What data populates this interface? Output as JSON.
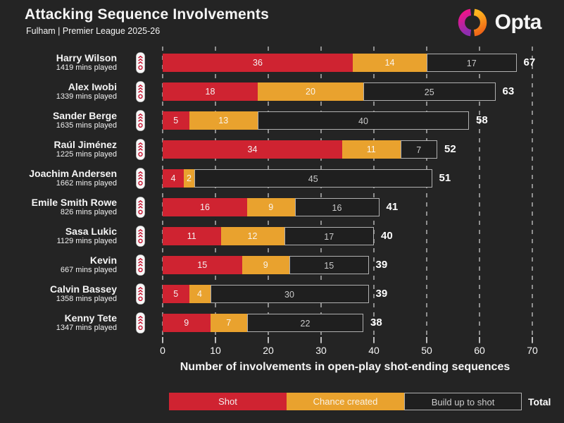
{
  "header": {
    "title": "Attacking Sequence Involvements",
    "subtitle": "Fulham | Premier League 2025-26",
    "brand": "Opta"
  },
  "theme": {
    "background": "#242424",
    "shot_red": "#cf2331",
    "chance_orange": "#e9a22e",
    "buildup_fill": "#1f1f1f",
    "buildup_border": "#b0b0b0",
    "grid_color": "#8f8f8f",
    "badge_red": "#c8102e",
    "opta_magenta_top": "#f0148a",
    "opta_purple_bottom": "#8e2daf",
    "opta_orange_bottom": "#ef6317",
    "opta_amber_top": "#ffb41e"
  },
  "chart_data": {
    "type": "bar",
    "orientation": "horizontal",
    "stacked": true,
    "title": "Attacking Sequence Involvements",
    "subtitle": "Fulham | Premier League 2025-26",
    "xlabel": "Number of involvements in open-play shot-ending sequences",
    "ylabel": "",
    "xlim": [
      0,
      70
    ],
    "x_ticks": [
      0,
      10,
      20,
      30,
      40,
      50,
      60,
      70
    ],
    "grid": "dashed-vertical",
    "legend_position": "bottom",
    "series_names": [
      "Shot",
      "Chance created",
      "Build up to shot"
    ],
    "rows": [
      {
        "player": "Harry Wilson",
        "mins_played": "1419 mins played",
        "shot": 36,
        "chance_created": 14,
        "build_up_to_shot": 17,
        "total": 67
      },
      {
        "player": "Alex Iwobi",
        "mins_played": "1339 mins played",
        "shot": 18,
        "chance_created": 20,
        "build_up_to_shot": 25,
        "total": 63
      },
      {
        "player": "Sander Berge",
        "mins_played": "1635 mins played",
        "shot": 5,
        "chance_created": 13,
        "build_up_to_shot": 40,
        "total": 58
      },
      {
        "player": "Raúl Jiménez",
        "mins_played": "1225 mins played",
        "shot": 34,
        "chance_created": 11,
        "build_up_to_shot": 7,
        "total": 52
      },
      {
        "player": "Joachim Andersen",
        "mins_played": "1662 mins played",
        "shot": 4,
        "chance_created": 2,
        "build_up_to_shot": 45,
        "total": 51
      },
      {
        "player": "Emile Smith Rowe",
        "mins_played": "826 mins played",
        "shot": 16,
        "chance_created": 9,
        "build_up_to_shot": 16,
        "total": 41
      },
      {
        "player": "Sasa Lukic",
        "mins_played": "1129 mins played",
        "shot": 11,
        "chance_created": 12,
        "build_up_to_shot": 17,
        "total": 40
      },
      {
        "player": "Kevin",
        "mins_played": "667 mins played",
        "shot": 15,
        "chance_created": 9,
        "build_up_to_shot": 15,
        "total": 39
      },
      {
        "player": "Calvin Bassey",
        "mins_played": "1358 mins played",
        "shot": 5,
        "chance_created": 4,
        "build_up_to_shot": 30,
        "total": 39
      },
      {
        "player": "Kenny Tete",
        "mins_played": "1347 mins played",
        "shot": 9,
        "chance_created": 7,
        "build_up_to_shot": 22,
        "total": 38
      }
    ]
  },
  "legend": {
    "items": [
      {
        "label": "Shot",
        "key": "shot"
      },
      {
        "label": "Chance created",
        "key": "chance_created"
      },
      {
        "label": "Build up to shot",
        "key": "build_up_to_shot"
      }
    ],
    "total_label": "Total"
  }
}
